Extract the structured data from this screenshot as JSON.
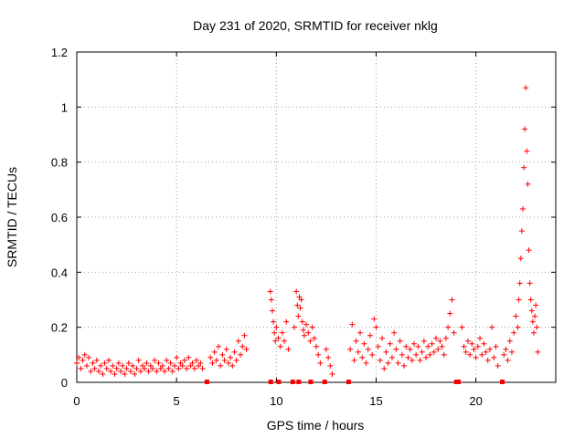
{
  "chart_data": {
    "type": "scatter",
    "title": "Day 231 of 2020, SRMTID for receiver nklg",
    "xlabel": "GPS time / hours",
    "ylabel": "SRMTID / TECUs",
    "xlim": [
      0,
      24
    ],
    "ylim": [
      0,
      1.2
    ],
    "xticks": [
      0,
      5,
      10,
      15,
      20
    ],
    "xtick_labels": [
      "0",
      "5",
      "10",
      "15",
      "20"
    ],
    "yticks": [
      0,
      0.2,
      0.4,
      0.6,
      0.8,
      1.0,
      1.2
    ],
    "ytick_labels": [
      "0",
      "0.2",
      "0.4",
      "0.6",
      "0.8",
      "1",
      "1.2"
    ],
    "grid": true,
    "marker": "+",
    "color": "#ff0000",
    "data_gaps_x": [
      6.5,
      9.7,
      10.1,
      10.8,
      11.1,
      11.7,
      12.4,
      13.6,
      19.0,
      19.1,
      21.3
    ],
    "series": [
      {
        "name": "SRMTID",
        "points": [
          [
            0.0,
            0.07
          ],
          [
            0.1,
            0.09
          ],
          [
            0.2,
            0.05
          ],
          [
            0.3,
            0.08
          ],
          [
            0.4,
            0.1
          ],
          [
            0.5,
            0.06
          ],
          [
            0.6,
            0.09
          ],
          [
            0.7,
            0.04
          ],
          [
            0.8,
            0.07
          ],
          [
            0.9,
            0.05
          ],
          [
            1.0,
            0.08
          ],
          [
            1.1,
            0.04
          ],
          [
            1.2,
            0.06
          ],
          [
            1.3,
            0.03
          ],
          [
            1.4,
            0.07
          ],
          [
            1.5,
            0.05
          ],
          [
            1.6,
            0.08
          ],
          [
            1.7,
            0.04
          ],
          [
            1.8,
            0.06
          ],
          [
            1.9,
            0.03
          ],
          [
            2.0,
            0.05
          ],
          [
            2.1,
            0.07
          ],
          [
            2.2,
            0.04
          ],
          [
            2.3,
            0.06
          ],
          [
            2.4,
            0.03
          ],
          [
            2.5,
            0.05
          ],
          [
            2.6,
            0.07
          ],
          [
            2.7,
            0.04
          ],
          [
            2.8,
            0.06
          ],
          [
            2.9,
            0.03
          ],
          [
            3.0,
            0.05
          ],
          [
            3.1,
            0.08
          ],
          [
            3.2,
            0.04
          ],
          [
            3.3,
            0.06
          ],
          [
            3.4,
            0.05
          ],
          [
            3.5,
            0.07
          ],
          [
            3.6,
            0.04
          ],
          [
            3.7,
            0.06
          ],
          [
            3.8,
            0.05
          ],
          [
            3.9,
            0.08
          ],
          [
            4.0,
            0.04
          ],
          [
            4.1,
            0.07
          ],
          [
            4.2,
            0.05
          ],
          [
            4.3,
            0.06
          ],
          [
            4.4,
            0.04
          ],
          [
            4.5,
            0.08
          ],
          [
            4.6,
            0.05
          ],
          [
            4.7,
            0.07
          ],
          [
            4.8,
            0.04
          ],
          [
            4.9,
            0.06
          ],
          [
            5.0,
            0.09
          ],
          [
            5.1,
            0.05
          ],
          [
            5.2,
            0.07
          ],
          [
            5.3,
            0.06
          ],
          [
            5.4,
            0.08
          ],
          [
            5.5,
            0.05
          ],
          [
            5.6,
            0.09
          ],
          [
            5.7,
            0.06
          ],
          [
            5.8,
            0.07
          ],
          [
            5.9,
            0.05
          ],
          [
            6.0,
            0.08
          ],
          [
            6.1,
            0.06
          ],
          [
            6.2,
            0.07
          ],
          [
            6.3,
            0.05
          ],
          [
            6.7,
            0.09
          ],
          [
            6.8,
            0.07
          ],
          [
            6.9,
            0.11
          ],
          [
            7.0,
            0.08
          ],
          [
            7.1,
            0.13
          ],
          [
            7.2,
            0.06
          ],
          [
            7.3,
            0.1
          ],
          [
            7.4,
            0.08
          ],
          [
            7.5,
            0.12
          ],
          [
            7.6,
            0.07
          ],
          [
            7.7,
            0.09
          ],
          [
            7.8,
            0.06
          ],
          [
            7.9,
            0.11
          ],
          [
            8.0,
            0.08
          ],
          [
            8.1,
            0.15
          ],
          [
            8.2,
            0.1
          ],
          [
            8.3,
            0.13
          ],
          [
            8.4,
            0.17
          ],
          [
            8.5,
            0.12
          ],
          [
            9.7,
            0.33
          ],
          [
            9.75,
            0.3
          ],
          [
            9.8,
            0.26
          ],
          [
            9.85,
            0.22
          ],
          [
            9.9,
            0.18
          ],
          [
            9.95,
            0.15
          ],
          [
            10.0,
            0.2
          ],
          [
            10.1,
            0.16
          ],
          [
            10.2,
            0.13
          ],
          [
            10.3,
            0.18
          ],
          [
            10.4,
            0.15
          ],
          [
            10.5,
            0.22
          ],
          [
            10.6,
            0.12
          ],
          [
            10.9,
            0.2
          ],
          [
            11.0,
            0.33
          ],
          [
            11.05,
            0.28
          ],
          [
            11.1,
            0.24
          ],
          [
            11.15,
            0.31
          ],
          [
            11.2,
            0.27
          ],
          [
            11.25,
            0.3
          ],
          [
            11.3,
            0.22
          ],
          [
            11.35,
            0.19
          ],
          [
            11.4,
            0.17
          ],
          [
            11.5,
            0.21
          ],
          [
            11.6,
            0.18
          ],
          [
            11.7,
            0.15
          ],
          [
            11.8,
            0.2
          ],
          [
            11.9,
            0.16
          ],
          [
            12.0,
            0.13
          ],
          [
            12.1,
            0.1
          ],
          [
            12.2,
            0.07
          ],
          [
            12.5,
            0.12
          ],
          [
            12.6,
            0.09
          ],
          [
            12.7,
            0.06
          ],
          [
            12.8,
            0.03
          ],
          [
            13.7,
            0.12
          ],
          [
            13.8,
            0.21
          ],
          [
            13.9,
            0.08
          ],
          [
            14.0,
            0.15
          ],
          [
            14.1,
            0.11
          ],
          [
            14.2,
            0.18
          ],
          [
            14.3,
            0.09
          ],
          [
            14.4,
            0.14
          ],
          [
            14.5,
            0.07
          ],
          [
            14.6,
            0.12
          ],
          [
            14.7,
            0.17
          ],
          [
            14.8,
            0.1
          ],
          [
            14.9,
            0.23
          ],
          [
            15.0,
            0.2
          ],
          [
            15.1,
            0.13
          ],
          [
            15.2,
            0.08
          ],
          [
            15.3,
            0.16
          ],
          [
            15.4,
            0.05
          ],
          [
            15.5,
            0.11
          ],
          [
            15.6,
            0.07
          ],
          [
            15.7,
            0.14
          ],
          [
            15.8,
            0.09
          ],
          [
            15.9,
            0.18
          ],
          [
            16.0,
            0.12
          ],
          [
            16.1,
            0.07
          ],
          [
            16.2,
            0.15
          ],
          [
            16.3,
            0.1
          ],
          [
            16.4,
            0.06
          ],
          [
            16.5,
            0.13
          ],
          [
            16.6,
            0.09
          ],
          [
            16.7,
            0.12
          ],
          [
            16.8,
            0.08
          ],
          [
            16.9,
            0.14
          ],
          [
            17.0,
            0.1
          ],
          [
            17.1,
            0.13
          ],
          [
            17.2,
            0.08
          ],
          [
            17.3,
            0.11
          ],
          [
            17.4,
            0.15
          ],
          [
            17.5,
            0.09
          ],
          [
            17.6,
            0.13
          ],
          [
            17.7,
            0.1
          ],
          [
            17.8,
            0.14
          ],
          [
            17.9,
            0.11
          ],
          [
            18.0,
            0.16
          ],
          [
            18.1,
            0.12
          ],
          [
            18.2,
            0.15
          ],
          [
            18.3,
            0.13
          ],
          [
            18.4,
            0.1
          ],
          [
            18.5,
            0.16
          ],
          [
            18.6,
            0.2
          ],
          [
            18.7,
            0.25
          ],
          [
            18.8,
            0.3
          ],
          [
            18.9,
            0.18
          ],
          [
            19.3,
            0.2
          ],
          [
            19.4,
            0.13
          ],
          [
            19.5,
            0.11
          ],
          [
            19.6,
            0.15
          ],
          [
            19.7,
            0.1
          ],
          [
            19.8,
            0.14
          ],
          [
            19.9,
            0.12
          ],
          [
            20.0,
            0.09
          ],
          [
            20.1,
            0.13
          ],
          [
            20.2,
            0.16
          ],
          [
            20.3,
            0.1
          ],
          [
            20.4,
            0.14
          ],
          [
            20.5,
            0.11
          ],
          [
            20.6,
            0.08
          ],
          [
            20.7,
            0.12
          ],
          [
            20.8,
            0.2
          ],
          [
            20.9,
            0.09
          ],
          [
            21.0,
            0.13
          ],
          [
            21.1,
            0.06
          ],
          [
            21.4,
            0.1
          ],
          [
            21.5,
            0.12
          ],
          [
            21.6,
            0.08
          ],
          [
            21.7,
            0.15
          ],
          [
            21.8,
            0.11
          ],
          [
            21.9,
            0.18
          ],
          [
            22.0,
            0.24
          ],
          [
            22.1,
            0.2
          ],
          [
            22.15,
            0.3
          ],
          [
            22.2,
            0.36
          ],
          [
            22.25,
            0.45
          ],
          [
            22.3,
            0.55
          ],
          [
            22.35,
            0.63
          ],
          [
            22.4,
            0.78
          ],
          [
            22.45,
            0.92
          ],
          [
            22.5,
            1.07
          ],
          [
            22.55,
            0.84
          ],
          [
            22.6,
            0.72
          ],
          [
            22.65,
            0.48
          ],
          [
            22.7,
            0.36
          ],
          [
            22.75,
            0.3
          ],
          [
            22.8,
            0.26
          ],
          [
            22.85,
            0.22
          ],
          [
            22.9,
            0.18
          ],
          [
            22.95,
            0.24
          ],
          [
            23.0,
            0.28
          ],
          [
            23.05,
            0.2
          ],
          [
            23.1,
            0.11
          ]
        ]
      }
    ]
  }
}
